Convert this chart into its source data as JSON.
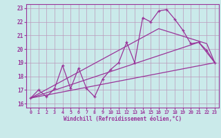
{
  "xlabel": "Windchill (Refroidissement éolien,°C)",
  "background_color": "#caeaea",
  "line_color": "#993399",
  "grid_color": "#aacccc",
  "xlim": [
    -0.5,
    23.5
  ],
  "ylim": [
    15.7,
    23.3
  ],
  "xticks": [
    0,
    1,
    2,
    3,
    4,
    5,
    6,
    7,
    8,
    9,
    10,
    11,
    12,
    13,
    14,
    15,
    16,
    17,
    18,
    19,
    20,
    21,
    22,
    23
  ],
  "yticks": [
    16,
    17,
    18,
    19,
    20,
    21,
    22,
    23
  ],
  "lines": [
    {
      "x": [
        0,
        1,
        2,
        3,
        4,
        5,
        6,
        7,
        8,
        9,
        10,
        11,
        12,
        13,
        14,
        15,
        16,
        17,
        18,
        19,
        20,
        21,
        22,
        23
      ],
      "y": [
        16.4,
        17.0,
        16.5,
        17.1,
        18.8,
        17.1,
        18.6,
        17.1,
        16.5,
        17.8,
        18.5,
        19.0,
        20.5,
        19.0,
        22.3,
        22.0,
        22.8,
        22.9,
        22.2,
        21.4,
        20.4,
        20.5,
        19.9,
        19.0
      ],
      "marker": true
    },
    {
      "x": [
        0,
        16,
        22,
        23
      ],
      "y": [
        16.4,
        21.5,
        20.4,
        19.0
      ],
      "marker": false
    },
    {
      "x": [
        0,
        20,
        21,
        23
      ],
      "y": [
        16.4,
        20.3,
        20.5,
        19.0
      ],
      "marker": false
    },
    {
      "x": [
        0,
        23
      ],
      "y": [
        16.4,
        19.0
      ],
      "marker": false
    }
  ]
}
